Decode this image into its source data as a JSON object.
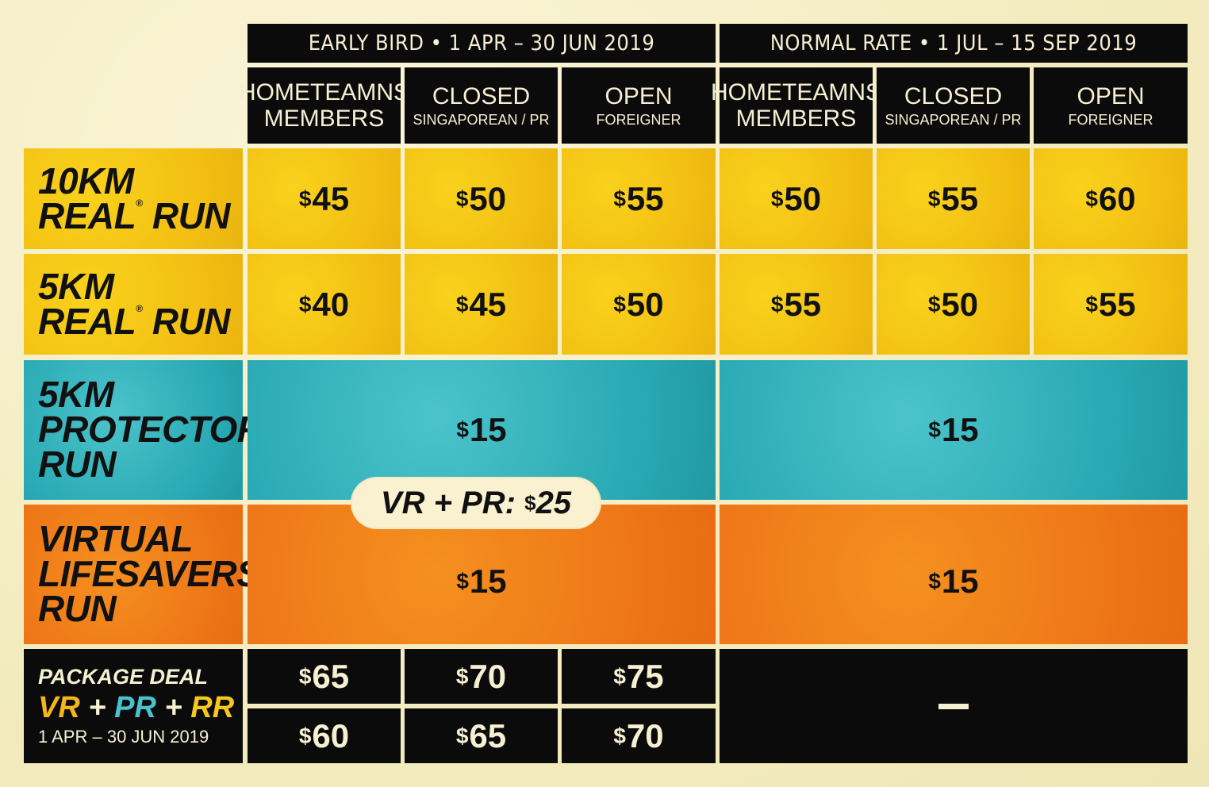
{
  "header": {
    "early_bird": "EARLY BIRD  •  1 APR – 30 JUN 2019",
    "normal_rate": "NORMAL RATE  •  1 JUL – 15 SEP 2019",
    "columns": [
      {
        "title": "HOMETEAMNS",
        "line2": "MEMBERS",
        "sub": ""
      },
      {
        "title": "CLOSED",
        "line2": "",
        "sub": "SINGAPOREAN / PR"
      },
      {
        "title": "OPEN",
        "line2": "",
        "sub": "FOREIGNER"
      }
    ]
  },
  "rows": {
    "r10km": {
      "line1": "10KM",
      "line2": "REAL",
      "line2b": "RUN",
      "reg": "®",
      "prices": [
        "45",
        "50",
        "55",
        "50",
        "55",
        "60"
      ]
    },
    "r5km": {
      "line1": "5KM",
      "line2": "REAL",
      "line2b": "RUN",
      "reg": "®",
      "prices": [
        "40",
        "45",
        "50",
        "55",
        "50",
        "55"
      ]
    },
    "protector": {
      "line1": "5KM",
      "line2": "PROTECTOR",
      "line3": "RUN",
      "early": "15",
      "normal": "15"
    },
    "virtual": {
      "line1": "VIRTUAL",
      "line2": "LIFESAVERS",
      "line3": "RUN",
      "early": "15",
      "normal": "15"
    },
    "combo": {
      "label": "VR + PR:",
      "price": "25"
    }
  },
  "package": {
    "title": "PACKAGE DEAL",
    "vr": "VR",
    "pr": "PR",
    "rr": "RR",
    "plus": "+",
    "dates": "1 APR – 30 JUN 2019",
    "row1": [
      "65",
      "70",
      "75"
    ],
    "row2": [
      "60",
      "65",
      "70"
    ],
    "normal": "—"
  },
  "currency": "$",
  "colors": {
    "black": "#0b0b0b",
    "yellow": "#f5c414",
    "teal": "#2fb3bd",
    "orange": "#f2811c",
    "cream": "#f7f0c9"
  }
}
